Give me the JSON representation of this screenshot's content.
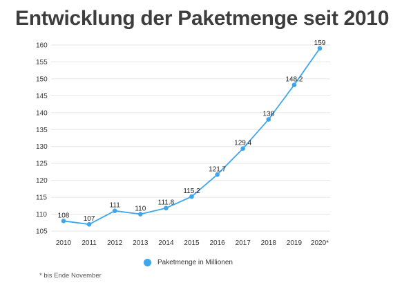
{
  "title": "Entwicklung der Paketmenge seit 2010",
  "footnote": "* bis Ende November",
  "colors": {
    "series": "#3ea6ec",
    "grid": "#e6e6e6",
    "title": "#3d3d3d"
  },
  "chart_data": {
    "type": "line",
    "title": "Entwicklung der Paketmenge seit 2010",
    "xlabel": "",
    "ylabel": "",
    "x": [
      "2010",
      "2011",
      "2012",
      "2013",
      "2014",
      "2015",
      "2016",
      "2017",
      "2018",
      "2019",
      "2020*"
    ],
    "series": [
      {
        "name": "Paketmenge in Millionen",
        "values": [
          108,
          107,
          111,
          110,
          111.8,
          115.2,
          121.7,
          129.4,
          138,
          148.2,
          159
        ],
        "labels": [
          "108",
          "107",
          "111",
          "110",
          "111.8",
          "115.2",
          "121.7",
          "129.4",
          "138",
          "148.2",
          "159"
        ]
      }
    ],
    "ylim": [
      105,
      160
    ],
    "yticks": [
      "160",
      "155",
      "150",
      "145",
      "140",
      "135",
      "130",
      "125",
      "120",
      "115",
      "110",
      "105"
    ],
    "grid": true,
    "legend": "bottom-center"
  }
}
